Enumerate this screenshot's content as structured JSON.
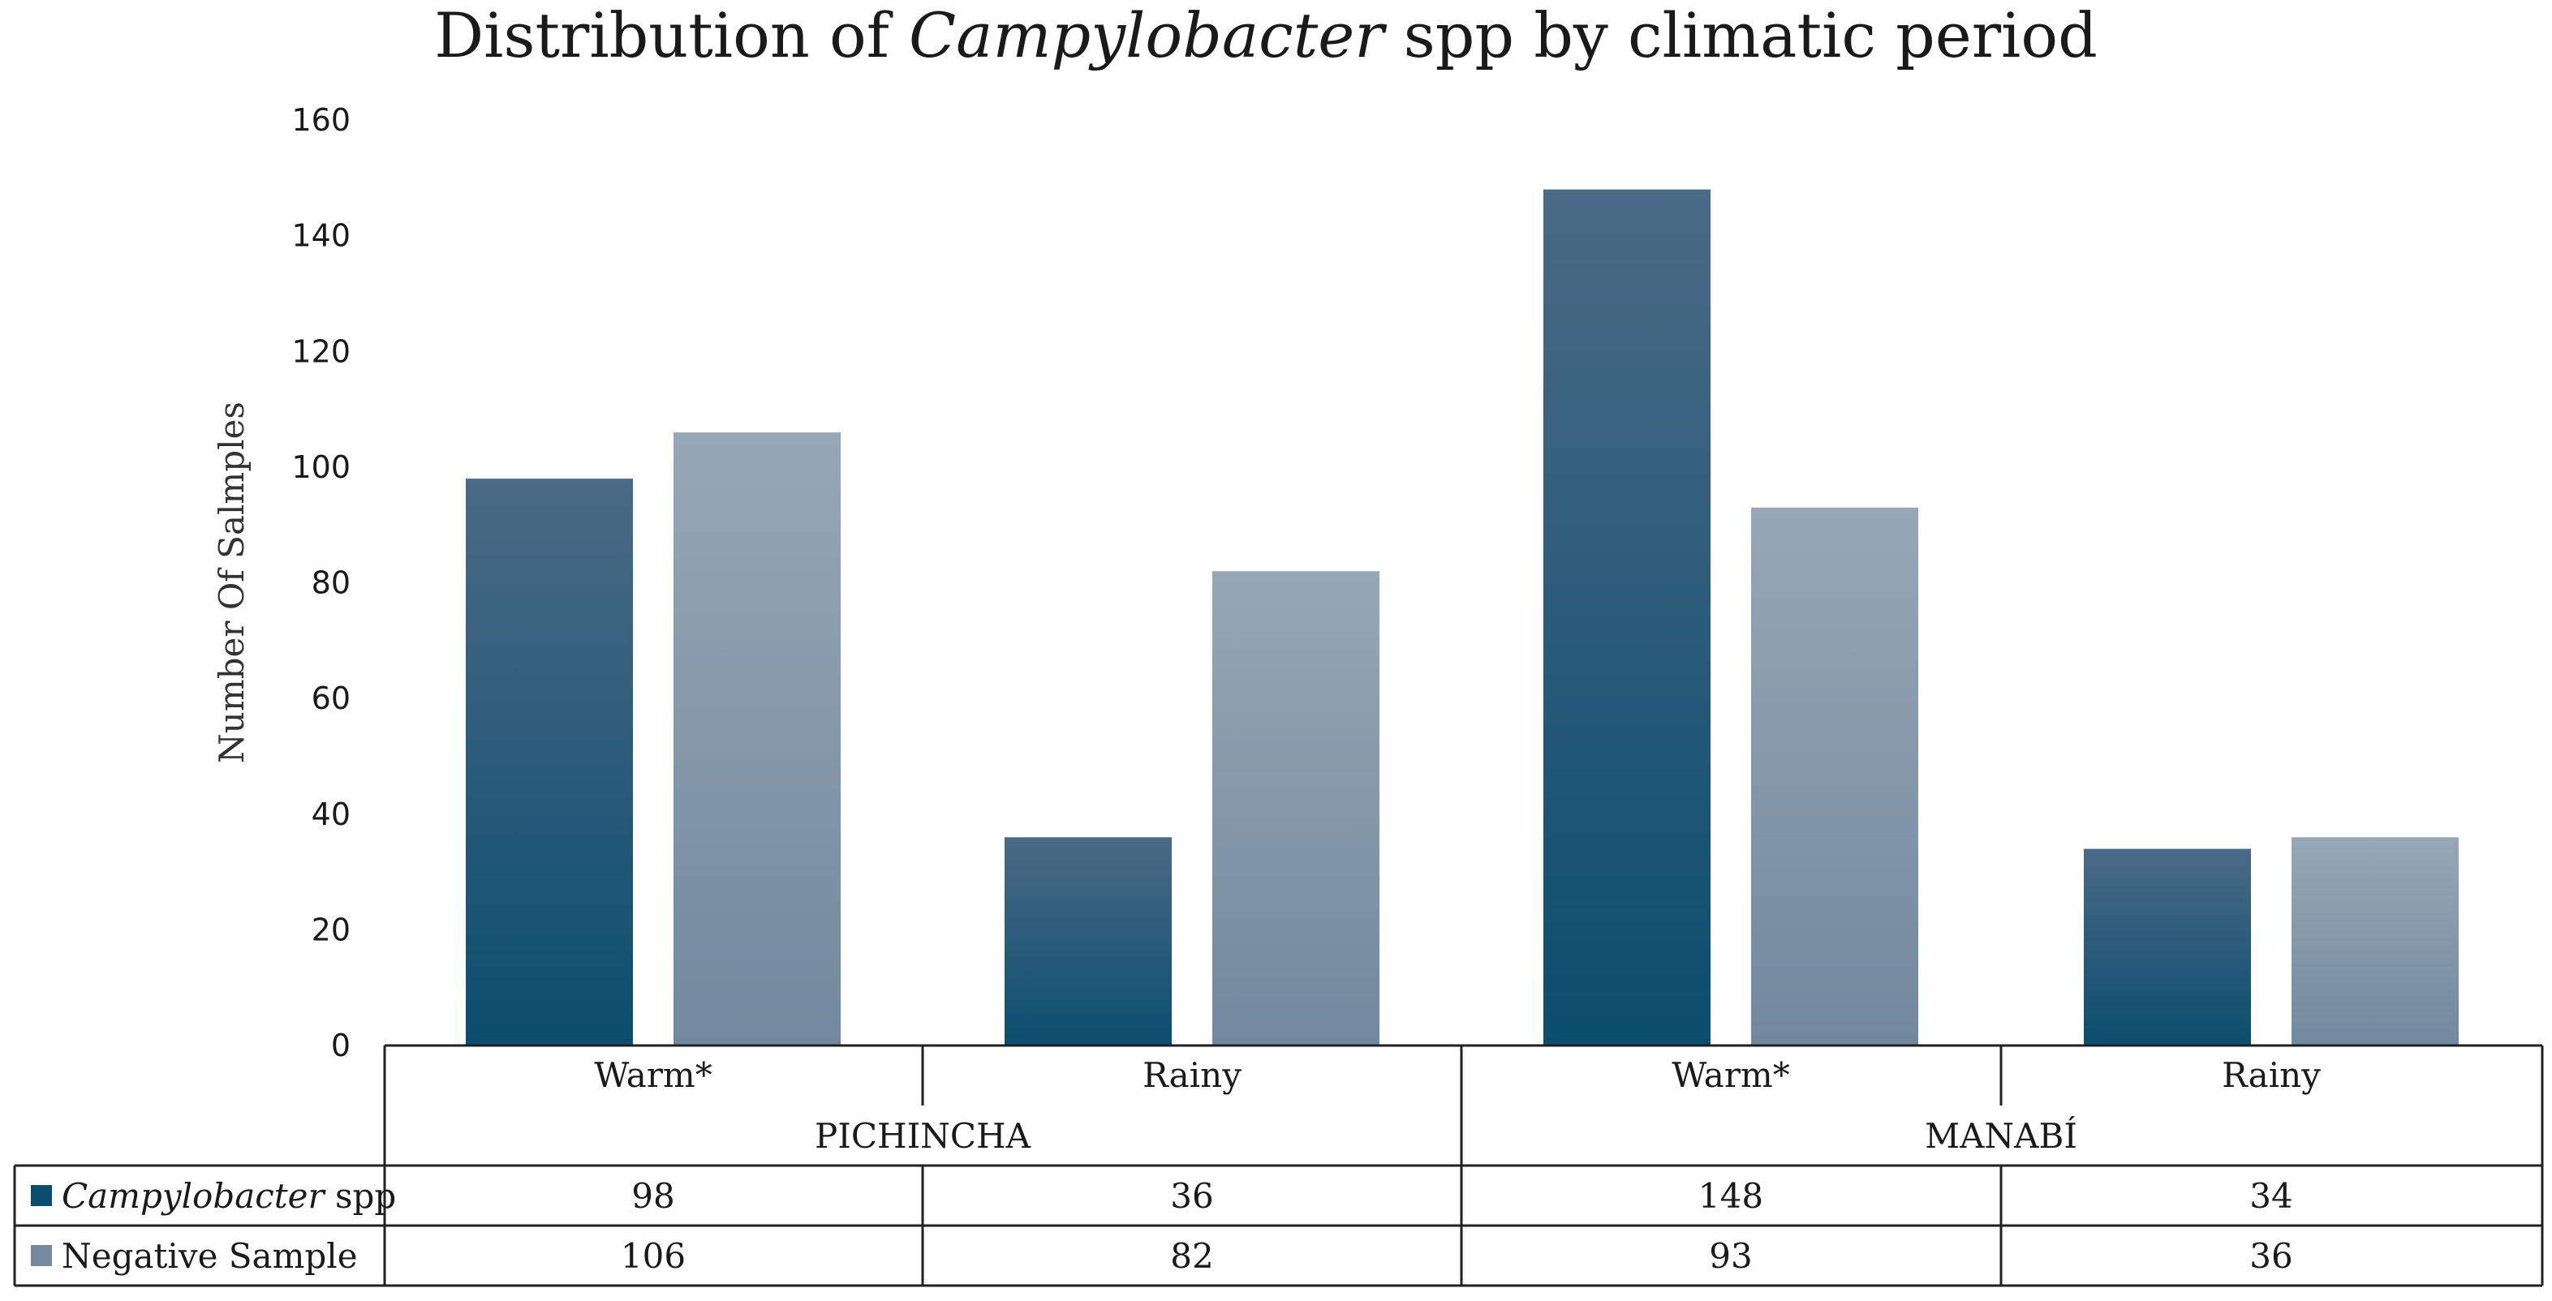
{
  "chart_data": {
    "type": "bar",
    "title_parts": [
      "Distribution of ",
      "Campylobacter",
      " spp by climatic period"
    ],
    "ylabel": "Number Of Salmples",
    "ylim": [
      0,
      160
    ],
    "yticks": [
      0,
      20,
      40,
      60,
      80,
      100,
      120,
      140,
      160
    ],
    "groups": [
      {
        "label": "PICHINCHA",
        "categories": [
          "Warm*",
          "Rainy"
        ]
      },
      {
        "label": "MANABÍ",
        "categories": [
          "Warm*",
          "Rainy"
        ]
      }
    ],
    "series": [
      {
        "name_parts": [
          "Campylobacter",
          " spp"
        ],
        "color_top": "#4a6a86",
        "color_bottom": "#0b4d6e",
        "values": [
          98,
          36,
          148,
          34
        ]
      },
      {
        "name_parts": [
          "Negative Sample"
        ],
        "color_top": "#96a8b6",
        "color_bottom": "#72889e",
        "values": [
          106,
          82,
          93,
          36
        ]
      }
    ],
    "table_rows": [
      {
        "cells": [
          "98",
          "36",
          "148",
          "34"
        ]
      },
      {
        "cells": [
          "106",
          "82",
          "93",
          "36"
        ]
      }
    ]
  }
}
